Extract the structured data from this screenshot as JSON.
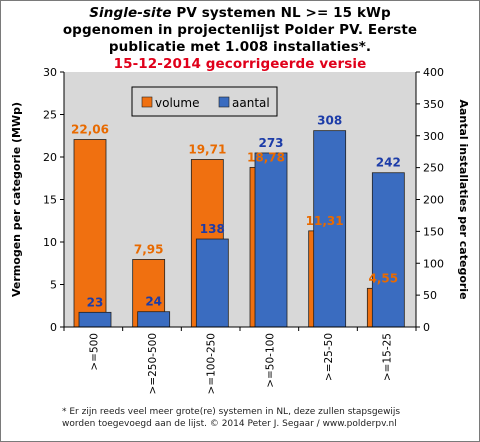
{
  "title": {
    "line1_italic": "Single-site",
    "line1_rest": " PV systemen NL >= 15 kWp",
    "line2": "opgenomen in projectenlijst Polder PV. Eerste",
    "line3": "publicatie met 1.008 installaties*.",
    "line4": "15-12-2014 gecorrigeerde versie"
  },
  "footnote": {
    "line1": "* Er zijn reeds veel meer grote(re) systemen in NL, deze zullen stapsgewijs",
    "line2": "worden toegevoegd aan de lijst. © 2014 Peter J. Segaar / www.polderpv.nl"
  },
  "colors": {
    "volume": "#f07010",
    "aantal": "#3a6cc0",
    "plot_bg": "#d8d8d8",
    "volume_label": "#e86a00",
    "aantal_label": "#1c3ca8",
    "subtitle_red": "#e0001a"
  },
  "chart_data": {
    "type": "bar",
    "categories": [
      ">=500",
      ">=250-500",
      ">=100-250",
      ">=50-100",
      ">=25-50",
      ">=15-25"
    ],
    "series": [
      {
        "name": "volume",
        "axis": "left",
        "values": [
          22.06,
          7.95,
          19.71,
          18.78,
          11.31,
          4.55
        ],
        "labels": [
          "22,06",
          "7,95",
          "19,71",
          "18,78",
          "11,31",
          "4,55"
        ]
      },
      {
        "name": "aantal",
        "axis": "right",
        "values": [
          23,
          24,
          138,
          273,
          308,
          242
        ],
        "labels": [
          "23",
          "24",
          "138",
          "273",
          "308",
          "242"
        ]
      }
    ],
    "ylabel": "Vermogen per categorie (MWp)",
    "y2label": "Aantal installaties per categorie",
    "ylim": [
      0,
      30
    ],
    "y2lim": [
      0,
      400
    ],
    "yticks": [
      0,
      5,
      10,
      15,
      20,
      25,
      30
    ],
    "y2ticks": [
      0,
      50,
      100,
      150,
      200,
      250,
      300,
      350,
      400
    ],
    "grid": false,
    "legend_position": "top-left"
  }
}
